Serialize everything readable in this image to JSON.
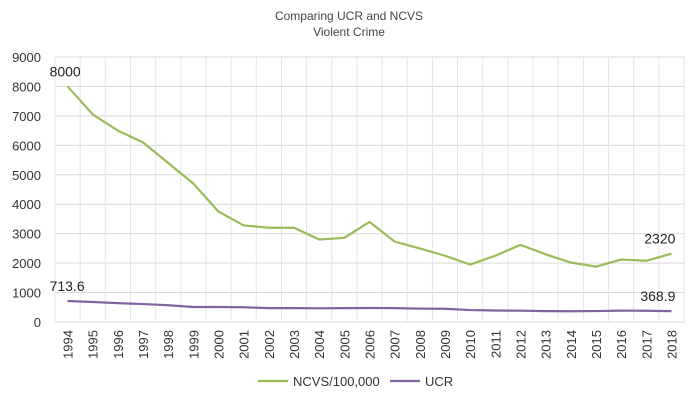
{
  "chart_data": {
    "type": "line",
    "title": "Comparing UCR and NCVS",
    "subtitle": "Violent Crime",
    "xlabel": "",
    "ylabel": "",
    "ylim": [
      0,
      9000
    ],
    "yticks": [
      0,
      1000,
      2000,
      3000,
      4000,
      5000,
      6000,
      7000,
      8000,
      9000
    ],
    "grid": true,
    "legend_position": "bottom",
    "categories": [
      "1994",
      "1995",
      "1996",
      "1997",
      "1998",
      "1999",
      "2000",
      "2001",
      "2002",
      "2003",
      "2004",
      "2005",
      "2006",
      "2007",
      "2008",
      "2009",
      "2010",
      "2011",
      "2012",
      "2013",
      "2014",
      "2015",
      "2016",
      "2017",
      "2018"
    ],
    "series": [
      {
        "name": "NCVS/100,000",
        "color": "#9bbb59",
        "values": [
          8000,
          7050,
          6500,
          6100,
          5400,
          4700,
          3750,
          3280,
          3200,
          3200,
          2800,
          2860,
          3400,
          2730,
          2500,
          2250,
          1950,
          2250,
          2620,
          2300,
          2020,
          1880,
          2120,
          2080,
          2320
        ],
        "data_labels": [
          {
            "index": 0,
            "text": "8000"
          },
          {
            "index": 24,
            "text": "2320"
          }
        ]
      },
      {
        "name": "UCR",
        "color": "#8064a2",
        "values": [
          713.6,
          680,
          640,
          610,
          570,
          510,
          510,
          500,
          470,
          470,
          465,
          470,
          475,
          470,
          455,
          450,
          405,
          390,
          385,
          370,
          365,
          372,
          386,
          383,
          368.9
        ],
        "data_labels": [
          {
            "index": 0,
            "text": "713.6"
          },
          {
            "index": 24,
            "text": "368.9"
          }
        ]
      }
    ]
  }
}
